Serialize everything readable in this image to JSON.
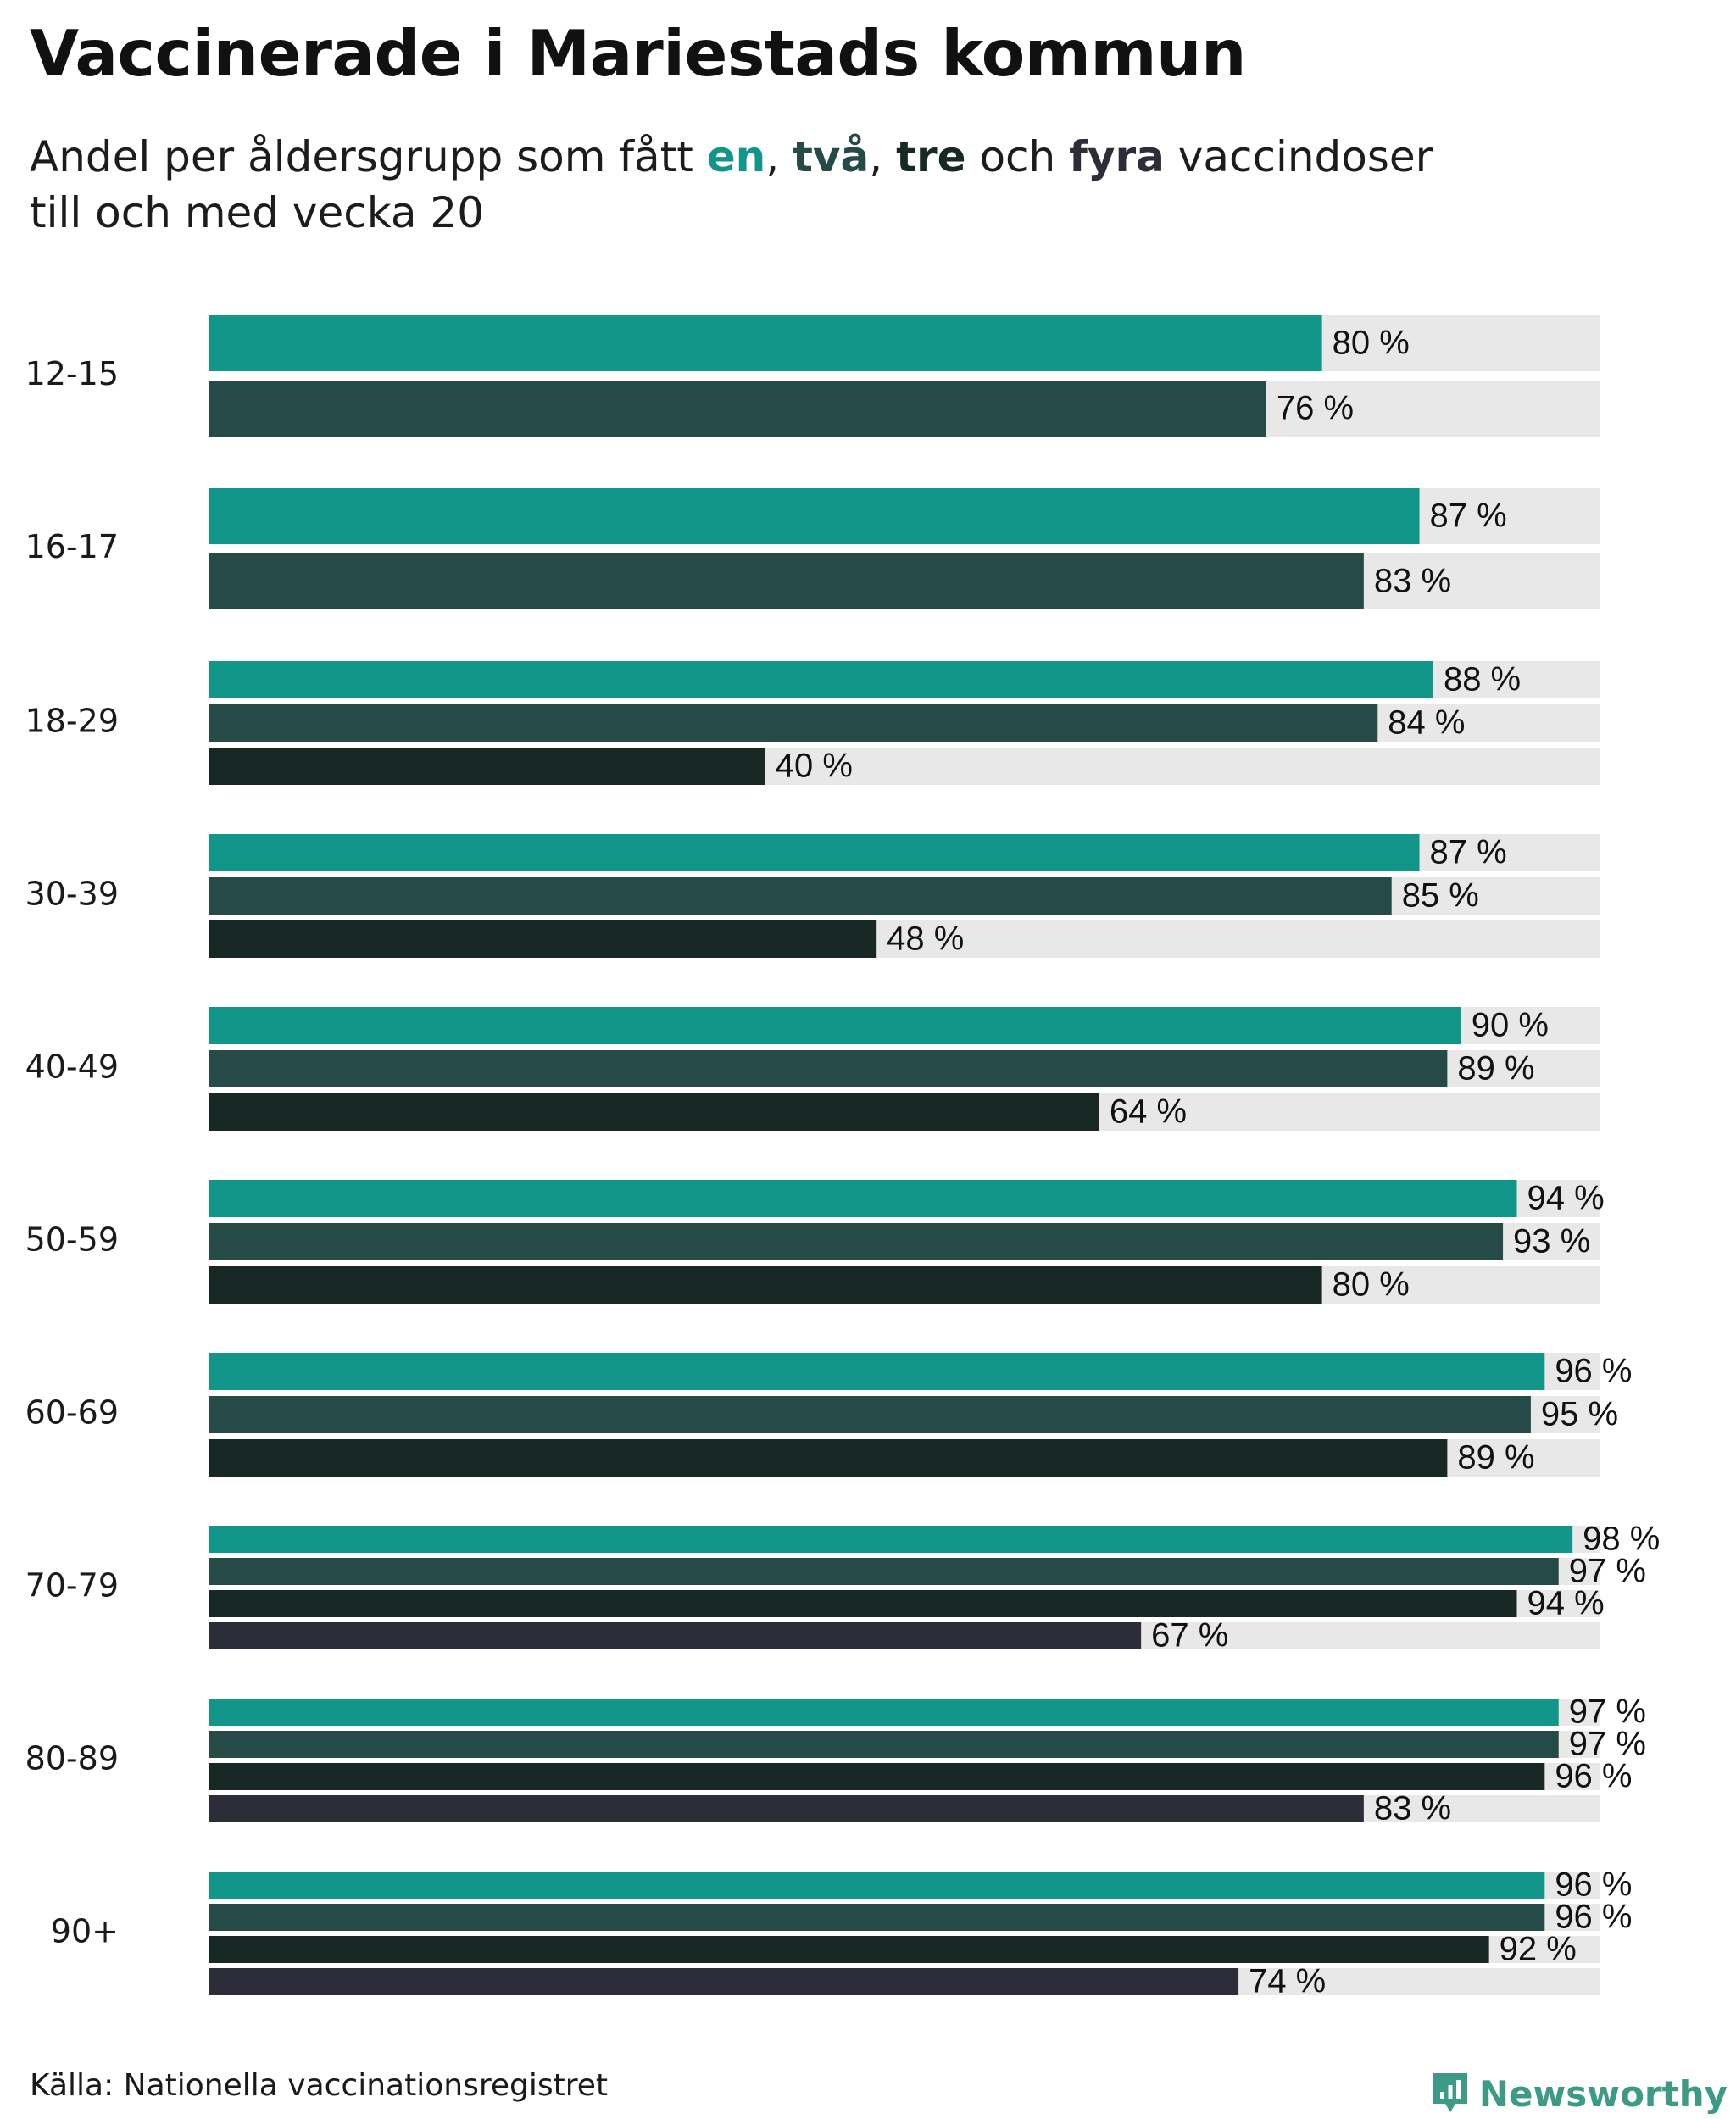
{
  "title": "Vaccinerade i Mariestads kommun",
  "subtitle": {
    "prefix": "Andel per åldersgrupp som fått ",
    "dose_words": [
      "en",
      "två",
      "tre",
      "fyra"
    ],
    "sep1": ", ",
    "sep2": ", ",
    "sep3": " och ",
    "suffix": " vaccindoser",
    "line2": "till och med vecka 20"
  },
  "colors": {
    "dose1": "#13968a",
    "dose2": "#264a47",
    "dose3": "#182825",
    "dose4": "#2d2d3a",
    "track": "#e8e8e8",
    "brand": "#3d9a86"
  },
  "chart_data": {
    "type": "bar",
    "orientation": "horizontal",
    "title": "Vaccinerade i Mariestads kommun",
    "subtitle": "Andel per åldersgrupp som fått en, två, tre och fyra vaccindoser till och med vecka 20",
    "xlim": [
      0,
      100
    ],
    "value_suffix": " %",
    "categories": [
      "12-15",
      "16-17",
      "18-29",
      "30-39",
      "40-49",
      "50-59",
      "60-69",
      "70-79",
      "80-89",
      "90+"
    ],
    "series": [
      {
        "name": "en",
        "values": [
          80,
          87,
          88,
          87,
          90,
          94,
          96,
          98,
          97,
          96
        ]
      },
      {
        "name": "två",
        "values": [
          76,
          83,
          84,
          85,
          89,
          93,
          95,
          97,
          97,
          96
        ]
      },
      {
        "name": "tre",
        "values": [
          null,
          null,
          40,
          48,
          64,
          80,
          89,
          94,
          96,
          92
        ]
      },
      {
        "name": "fyra",
        "values": [
          null,
          null,
          null,
          null,
          null,
          null,
          null,
          67,
          83,
          74
        ]
      }
    ],
    "grid": false,
    "legend": "none"
  },
  "footer": {
    "source": "Källa: Nationella vaccinationsregistret",
    "brand": "Newsworthy",
    "brand_icon": "newsworthy-logo-icon"
  }
}
